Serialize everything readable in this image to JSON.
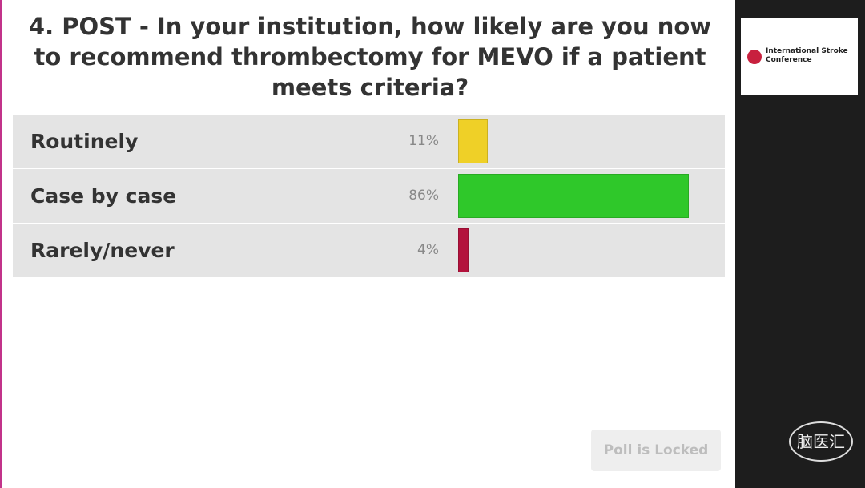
{
  "chart_data": {
    "type": "bar",
    "orientation": "horizontal",
    "title": "4. POST - In your institution, how likely are you now to recommend thrombectomy for MEVO if a patient meets criteria?",
    "categories": [
      "Routinely",
      "Case by case",
      "Rarely/never"
    ],
    "values": [
      11,
      86,
      4
    ],
    "value_labels": [
      "11%",
      "86%",
      "4%"
    ],
    "colors": [
      "#efd027",
      "#2fc82a",
      "#b3123c"
    ],
    "xlim": [
      0,
      100
    ]
  },
  "sidebar": {
    "logo_text": "International Stroke Conference"
  },
  "button": "Poll is Locked",
  "watermark": "脑医汇"
}
